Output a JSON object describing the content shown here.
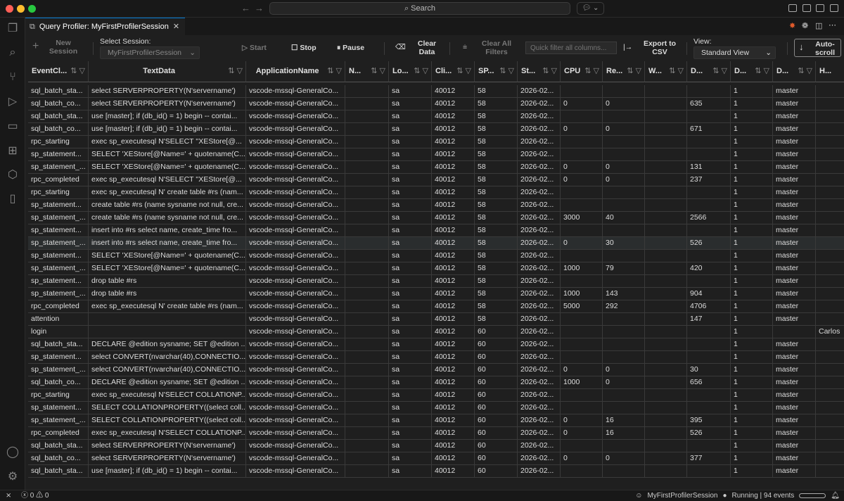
{
  "titlebar": {
    "search_label": "Search"
  },
  "tab": {
    "title": "Query Profiler: MyFirstProfilerSession"
  },
  "toolbar": {
    "new_session": "New Session",
    "select_session_label": "Select Session:",
    "session_value": "MyFirstProfilerSession",
    "start": "Start",
    "stop": "Stop",
    "pause": "Pause",
    "clear_data": "Clear Data",
    "clear_all_filters": "Clear All Filters",
    "quick_filter_placeholder": "Quick filter all columns...",
    "export_csv": "Export to CSV",
    "view_label": "View:",
    "view_value": "Standard View",
    "autoscroll": "Auto-scroll"
  },
  "grid": {
    "columns": [
      "EventCl...",
      "TextData",
      "ApplicationName",
      "N...",
      "Lo...",
      "Cli...",
      "SP...",
      "St...",
      "CPU",
      "Re...",
      "W...",
      "D...",
      "D...",
      "D...",
      "H..."
    ],
    "selected_row": 12,
    "rows": [
      [
        "sql_batch_sta...",
        "select SERVERPROPERTY(N'servername')",
        "vscode-mssql-GeneralCo...",
        "",
        "sa",
        "40012",
        "58",
        "2026-02...",
        "",
        "",
        "",
        "",
        "1",
        "master",
        ""
      ],
      [
        "sql_batch_co...",
        "select SERVERPROPERTY(N'servername')",
        "vscode-mssql-GeneralCo...",
        "",
        "sa",
        "40012",
        "58",
        "2026-02...",
        "0",
        "0",
        "",
        "635",
        "1",
        "master",
        ""
      ],
      [
        "sql_batch_sta...",
        "use [master]; if (db_id() = 1) begin -- contai...",
        "vscode-mssql-GeneralCo...",
        "",
        "sa",
        "40012",
        "58",
        "2026-02...",
        "",
        "",
        "",
        "",
        "1",
        "master",
        ""
      ],
      [
        "sql_batch_co...",
        "use [master]; if (db_id() = 1) begin -- contai...",
        "vscode-mssql-GeneralCo...",
        "",
        "sa",
        "40012",
        "58",
        "2026-02...",
        "0",
        "0",
        "",
        "671",
        "1",
        "master",
        ""
      ],
      [
        "rpc_starting",
        "exec sp_executesql N'SELECT ''XEStore[@...",
        "vscode-mssql-GeneralCo...",
        "",
        "sa",
        "40012",
        "58",
        "2026-02...",
        "",
        "",
        "",
        "",
        "1",
        "master",
        ""
      ],
      [
        "sp_statement...",
        "SELECT 'XEStore[@Name=' + quotename(C...",
        "vscode-mssql-GeneralCo...",
        "",
        "sa",
        "40012",
        "58",
        "2026-02...",
        "",
        "",
        "",
        "",
        "1",
        "master",
        ""
      ],
      [
        "sp_statement_...",
        "SELECT 'XEStore[@Name=' + quotename(C...",
        "vscode-mssql-GeneralCo...",
        "",
        "sa",
        "40012",
        "58",
        "2026-02...",
        "0",
        "0",
        "",
        "131",
        "1",
        "master",
        ""
      ],
      [
        "rpc_completed",
        "exec sp_executesql N'SELECT ''XEStore[@...",
        "vscode-mssql-GeneralCo...",
        "",
        "sa",
        "40012",
        "58",
        "2026-02...",
        "0",
        "0",
        "",
        "237",
        "1",
        "master",
        ""
      ],
      [
        "rpc_starting",
        "exec sp_executesql N' create table #rs (nam...",
        "vscode-mssql-GeneralCo...",
        "",
        "sa",
        "40012",
        "58",
        "2026-02...",
        "",
        "",
        "",
        "",
        "1",
        "master",
        ""
      ],
      [
        "sp_statement...",
        "create table #rs (name sysname not null, cre...",
        "vscode-mssql-GeneralCo...",
        "",
        "sa",
        "40012",
        "58",
        "2026-02...",
        "",
        "",
        "",
        "",
        "1",
        "master",
        ""
      ],
      [
        "sp_statement_...",
        "create table #rs (name sysname not null, cre...",
        "vscode-mssql-GeneralCo...",
        "",
        "sa",
        "40012",
        "58",
        "2026-02...",
        "3000",
        "40",
        "",
        "2566",
        "1",
        "master",
        ""
      ],
      [
        "sp_statement...",
        "insert into #rs select name, create_time fro...",
        "vscode-mssql-GeneralCo...",
        "",
        "sa",
        "40012",
        "58",
        "2026-02...",
        "",
        "",
        "",
        "",
        "1",
        "master",
        ""
      ],
      [
        "sp_statement_...",
        "insert into #rs select name, create_time fro...",
        "vscode-mssql-GeneralCo...",
        "",
        "sa",
        "40012",
        "58",
        "2026-02...",
        "0",
        "30",
        "",
        "526",
        "1",
        "master",
        ""
      ],
      [
        "sp_statement...",
        "SELECT 'XEStore[@Name=' + quotename(C...",
        "vscode-mssql-GeneralCo...",
        "",
        "sa",
        "40012",
        "58",
        "2026-02...",
        "",
        "",
        "",
        "",
        "1",
        "master",
        ""
      ],
      [
        "sp_statement_...",
        "SELECT 'XEStore[@Name=' + quotename(C...",
        "vscode-mssql-GeneralCo...",
        "",
        "sa",
        "40012",
        "58",
        "2026-02...",
        "1000",
        "79",
        "",
        "420",
        "1",
        "master",
        ""
      ],
      [
        "sp_statement...",
        "drop table #rs",
        "vscode-mssql-GeneralCo...",
        "",
        "sa",
        "40012",
        "58",
        "2026-02...",
        "",
        "",
        "",
        "",
        "1",
        "master",
        ""
      ],
      [
        "sp_statement_...",
        "drop table #rs",
        "vscode-mssql-GeneralCo...",
        "",
        "sa",
        "40012",
        "58",
        "2026-02...",
        "1000",
        "143",
        "",
        "904",
        "1",
        "master",
        ""
      ],
      [
        "rpc_completed",
        "exec sp_executesql N' create table #rs (nam...",
        "vscode-mssql-GeneralCo...",
        "",
        "sa",
        "40012",
        "58",
        "2026-02...",
        "5000",
        "292",
        "",
        "4706",
        "1",
        "master",
        ""
      ],
      [
        "attention",
        "",
        "vscode-mssql-GeneralCo...",
        "",
        "sa",
        "40012",
        "58",
        "2026-02...",
        "",
        "",
        "",
        "147",
        "1",
        "master",
        ""
      ],
      [
        "login",
        "",
        "vscode-mssql-GeneralCo...",
        "",
        "sa",
        "40012",
        "60",
        "2026-02...",
        "",
        "",
        "",
        "",
        "1",
        "",
        "Carlos"
      ],
      [
        "sql_batch_sta...",
        "DECLARE @edition sysname; SET @edition ...",
        "vscode-mssql-GeneralCo...",
        "",
        "sa",
        "40012",
        "60",
        "2026-02...",
        "",
        "",
        "",
        "",
        "1",
        "master",
        ""
      ],
      [
        "sp_statement...",
        "select CONVERT(nvarchar(40),CONNECTIO...",
        "vscode-mssql-GeneralCo...",
        "",
        "sa",
        "40012",
        "60",
        "2026-02...",
        "",
        "",
        "",
        "",
        "1",
        "master",
        ""
      ],
      [
        "sp_statement_...",
        "select CONVERT(nvarchar(40),CONNECTIO...",
        "vscode-mssql-GeneralCo...",
        "",
        "sa",
        "40012",
        "60",
        "2026-02...",
        "0",
        "0",
        "",
        "30",
        "1",
        "master",
        ""
      ],
      [
        "sql_batch_co...",
        "DECLARE @edition sysname; SET @edition ...",
        "vscode-mssql-GeneralCo...",
        "",
        "sa",
        "40012",
        "60",
        "2026-02...",
        "1000",
        "0",
        "",
        "656",
        "1",
        "master",
        ""
      ],
      [
        "rpc_starting",
        "exec sp_executesql N'SELECT COLLATIONP...",
        "vscode-mssql-GeneralCo...",
        "",
        "sa",
        "40012",
        "60",
        "2026-02...",
        "",
        "",
        "",
        "",
        "1",
        "master",
        ""
      ],
      [
        "sp_statement...",
        "SELECT COLLATIONPROPERTY((select coll...",
        "vscode-mssql-GeneralCo...",
        "",
        "sa",
        "40012",
        "60",
        "2026-02...",
        "",
        "",
        "",
        "",
        "1",
        "master",
        ""
      ],
      [
        "sp_statement_...",
        "SELECT COLLATIONPROPERTY((select coll...",
        "vscode-mssql-GeneralCo...",
        "",
        "sa",
        "40012",
        "60",
        "2026-02...",
        "0",
        "16",
        "",
        "395",
        "1",
        "master",
        ""
      ],
      [
        "rpc_completed",
        "exec sp_executesql N'SELECT COLLATIONP...",
        "vscode-mssql-GeneralCo...",
        "",
        "sa",
        "40012",
        "60",
        "2026-02...",
        "0",
        "16",
        "",
        "526",
        "1",
        "master",
        ""
      ],
      [
        "sql_batch_sta...",
        "select SERVERPROPERTY(N'servername')",
        "vscode-mssql-GeneralCo...",
        "",
        "sa",
        "40012",
        "60",
        "2026-02...",
        "",
        "",
        "",
        "",
        "1",
        "master",
        ""
      ],
      [
        "sql_batch_co...",
        "select SERVERPROPERTY(N'servername')",
        "vscode-mssql-GeneralCo...",
        "",
        "sa",
        "40012",
        "60",
        "2026-02...",
        "0",
        "0",
        "",
        "377",
        "1",
        "master",
        ""
      ],
      [
        "sql_batch_sta...",
        "use [master]; if (db_id() = 1) begin -- contai...",
        "vscode-mssql-GeneralCo...",
        "",
        "sa",
        "40012",
        "60",
        "2026-02...",
        "",
        "",
        "",
        "",
        "1",
        "master",
        ""
      ]
    ]
  },
  "statusbar": {
    "errors": "0",
    "warnings": "0",
    "session": "MyFirstProfilerSession",
    "state": "Running | 94 events"
  },
  "colors": {
    "accent": "#0078d4",
    "background": "#1f1f1f",
    "selected_row": "#2a2d2e"
  }
}
